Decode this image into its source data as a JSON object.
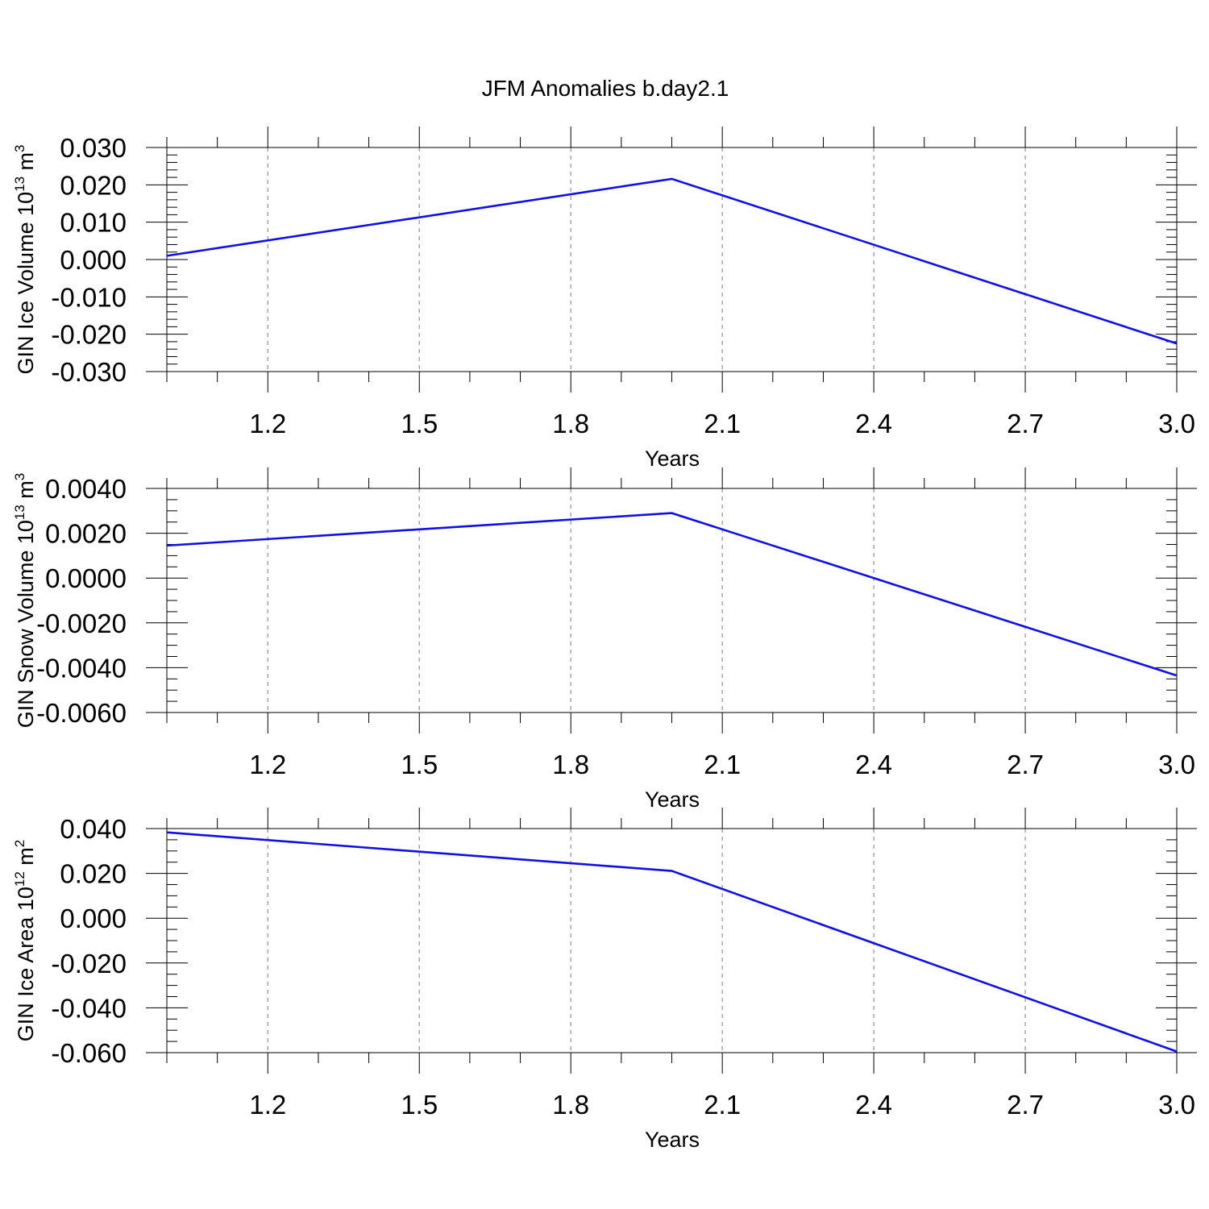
{
  "figure": {
    "title": "JFM Anomalies b.day2.1",
    "line_color": "#1010e6",
    "grid_color": "#9a9a9a"
  },
  "chart_data": [
    {
      "type": "line",
      "xlabel": "Years",
      "ylabel": {
        "text": "GIN Ice Volume 10",
        "exp": "13",
        "unit": " m",
        "unit_exp": "3"
      },
      "xlim": [
        1.0,
        3.0
      ],
      "ylim": [
        -0.03,
        0.03
      ],
      "x_ticks": [
        1.2,
        1.5,
        1.8,
        2.1,
        2.4,
        2.7,
        3.0
      ],
      "x_tick_labels": [
        "1.2",
        "1.5",
        "1.8",
        "2.1",
        "2.4",
        "2.7",
        "3.0"
      ],
      "y_ticks": [
        0.03,
        0.02,
        0.01,
        0.0,
        -0.01,
        -0.02,
        -0.03
      ],
      "y_tick_labels": [
        "0.030",
        "0.020",
        "0.010",
        "0.000",
        "-0.010",
        "-0.020",
        "-0.030"
      ],
      "y_minor_step": 0.002,
      "grid": "vertical-dashed",
      "x": [
        1.0,
        2.0,
        3.0
      ],
      "values": [
        0.001,
        0.0216,
        -0.0225
      ]
    },
    {
      "type": "line",
      "xlabel": "Years",
      "ylabel": {
        "text": "GIN Snow Volume 10",
        "exp": "13",
        "unit": " m",
        "unit_exp": "3"
      },
      "xlim": [
        1.0,
        3.0
      ],
      "ylim": [
        -0.006,
        0.004
      ],
      "x_ticks": [
        1.2,
        1.5,
        1.8,
        2.1,
        2.4,
        2.7,
        3.0
      ],
      "x_tick_labels": [
        "1.2",
        "1.5",
        "1.8",
        "2.1",
        "2.4",
        "2.7",
        "3.0"
      ],
      "y_ticks": [
        0.004,
        0.002,
        0.0,
        -0.002,
        -0.004,
        -0.006
      ],
      "y_tick_labels": [
        "0.0040",
        "0.0020",
        "0.0000",
        "-0.0020",
        "-0.0040",
        "-0.0060"
      ],
      "y_minor_step": 0.0005,
      "grid": "vertical-dashed",
      "x": [
        1.0,
        2.0,
        3.0
      ],
      "values": [
        0.00145,
        0.0029,
        -0.00435
      ]
    },
    {
      "type": "line",
      "xlabel": "Years",
      "ylabel": {
        "text": "GIN Ice Area 10",
        "exp": "12",
        "unit": " m",
        "unit_exp": "2"
      },
      "xlim": [
        1.0,
        3.0
      ],
      "ylim": [
        -0.06,
        0.04
      ],
      "x_ticks": [
        1.2,
        1.5,
        1.8,
        2.1,
        2.4,
        2.7,
        3.0
      ],
      "x_tick_labels": [
        "1.2",
        "1.5",
        "1.8",
        "2.1",
        "2.4",
        "2.7",
        "3.0"
      ],
      "y_ticks": [
        0.04,
        0.02,
        0.0,
        -0.02,
        -0.04,
        -0.06
      ],
      "y_tick_labels": [
        "0.040",
        "0.020",
        "0.000",
        "-0.020",
        "-0.040",
        "-0.060"
      ],
      "y_minor_step": 0.005,
      "grid": "vertical-dashed",
      "x": [
        1.0,
        2.0,
        3.0
      ],
      "values": [
        0.0383,
        0.0211,
        -0.0595
      ]
    }
  ]
}
